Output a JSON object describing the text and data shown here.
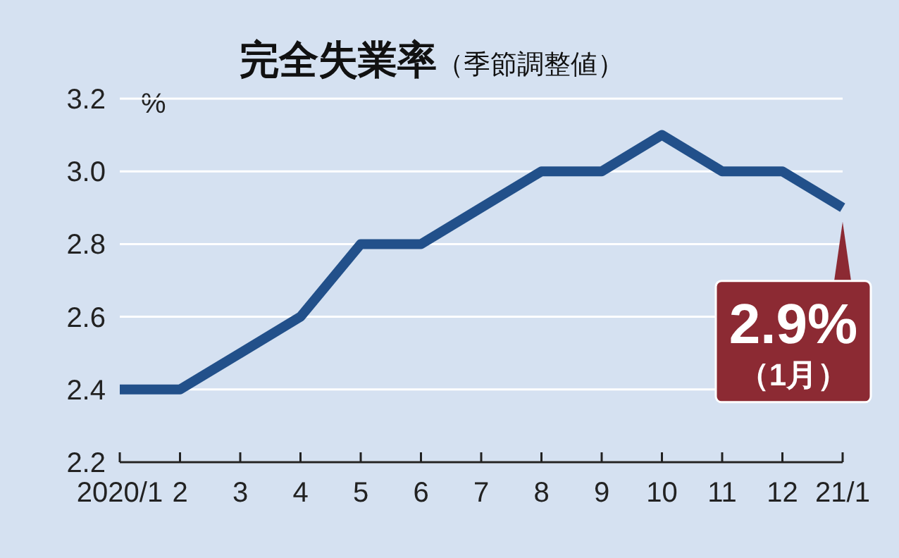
{
  "chart_data": {
    "type": "line",
    "title": "完全失業率",
    "subtitle": "（季節調整値）",
    "ylabel": "%",
    "categories": [
      "2020/1",
      "2",
      "3",
      "4",
      "5",
      "6",
      "7",
      "8",
      "9",
      "10",
      "11",
      "12",
      "21/1"
    ],
    "series": [
      {
        "color": "#22508a",
        "values": [
          2.4,
          2.4,
          2.5,
          2.6,
          2.8,
          2.8,
          2.9,
          3.0,
          3.0,
          3.1,
          3.0,
          3.0,
          2.9
        ]
      }
    ],
    "ylim": [
      2.2,
      3.2
    ],
    "yticks": [
      {
        "value": 2.2,
        "label": "2.2"
      },
      {
        "value": 2.4,
        "label": "2.4"
      },
      {
        "value": 2.6,
        "label": "2.6"
      },
      {
        "value": 2.8,
        "label": "2.8"
      },
      {
        "value": 3.0,
        "label": "3.0"
      },
      {
        "value": 3.2,
        "label": "3.2"
      }
    ],
    "grid": "y",
    "marker": "none",
    "line_style": "solid",
    "annotations": [
      {
        "text": "2.9%\n（1月）",
        "x": "21/1",
        "y": 2.9
      }
    ]
  }
}
